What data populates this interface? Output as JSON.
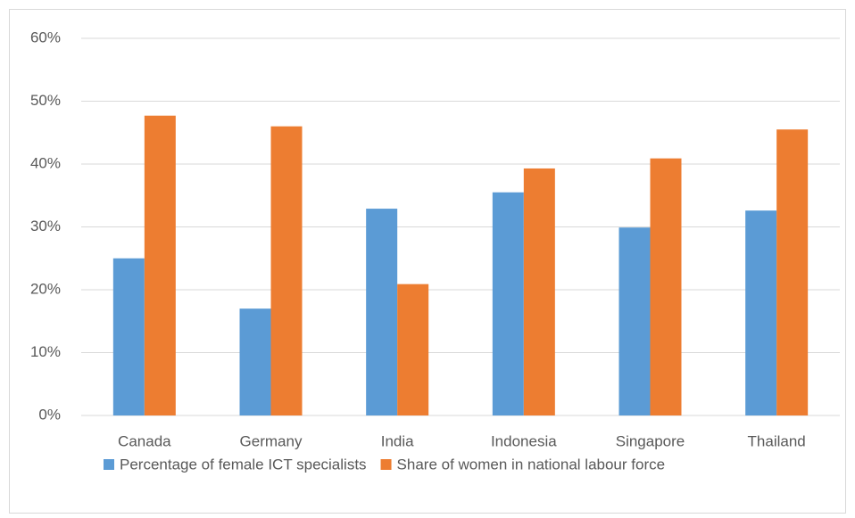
{
  "chart_data": {
    "type": "bar",
    "categories": [
      "Canada",
      "Germany",
      "India",
      "Indonesia",
      "Singapore",
      "Thailand"
    ],
    "series": [
      {
        "name": "Percentage of female ICT specialists",
        "color": "#5b9bd5",
        "values": [
          25.0,
          17.0,
          32.9,
          35.5,
          29.9,
          32.6
        ]
      },
      {
        "name": "Share of women in national labour force",
        "color": "#ed7d31",
        "values": [
          47.7,
          46.0,
          20.9,
          39.3,
          40.9,
          45.5
        ]
      }
    ],
    "ylim": [
      0,
      60
    ],
    "yticks": [
      {
        "value": 0,
        "label": "0%"
      },
      {
        "value": 10,
        "label": "10%"
      },
      {
        "value": 20,
        "label": "20%"
      },
      {
        "value": 30,
        "label": "30%"
      },
      {
        "value": 40,
        "label": "40%"
      },
      {
        "value": 50,
        "label": "50%"
      },
      {
        "value": 60,
        "label": "60%"
      }
    ],
    "grid": true,
    "legend": "bottom"
  }
}
